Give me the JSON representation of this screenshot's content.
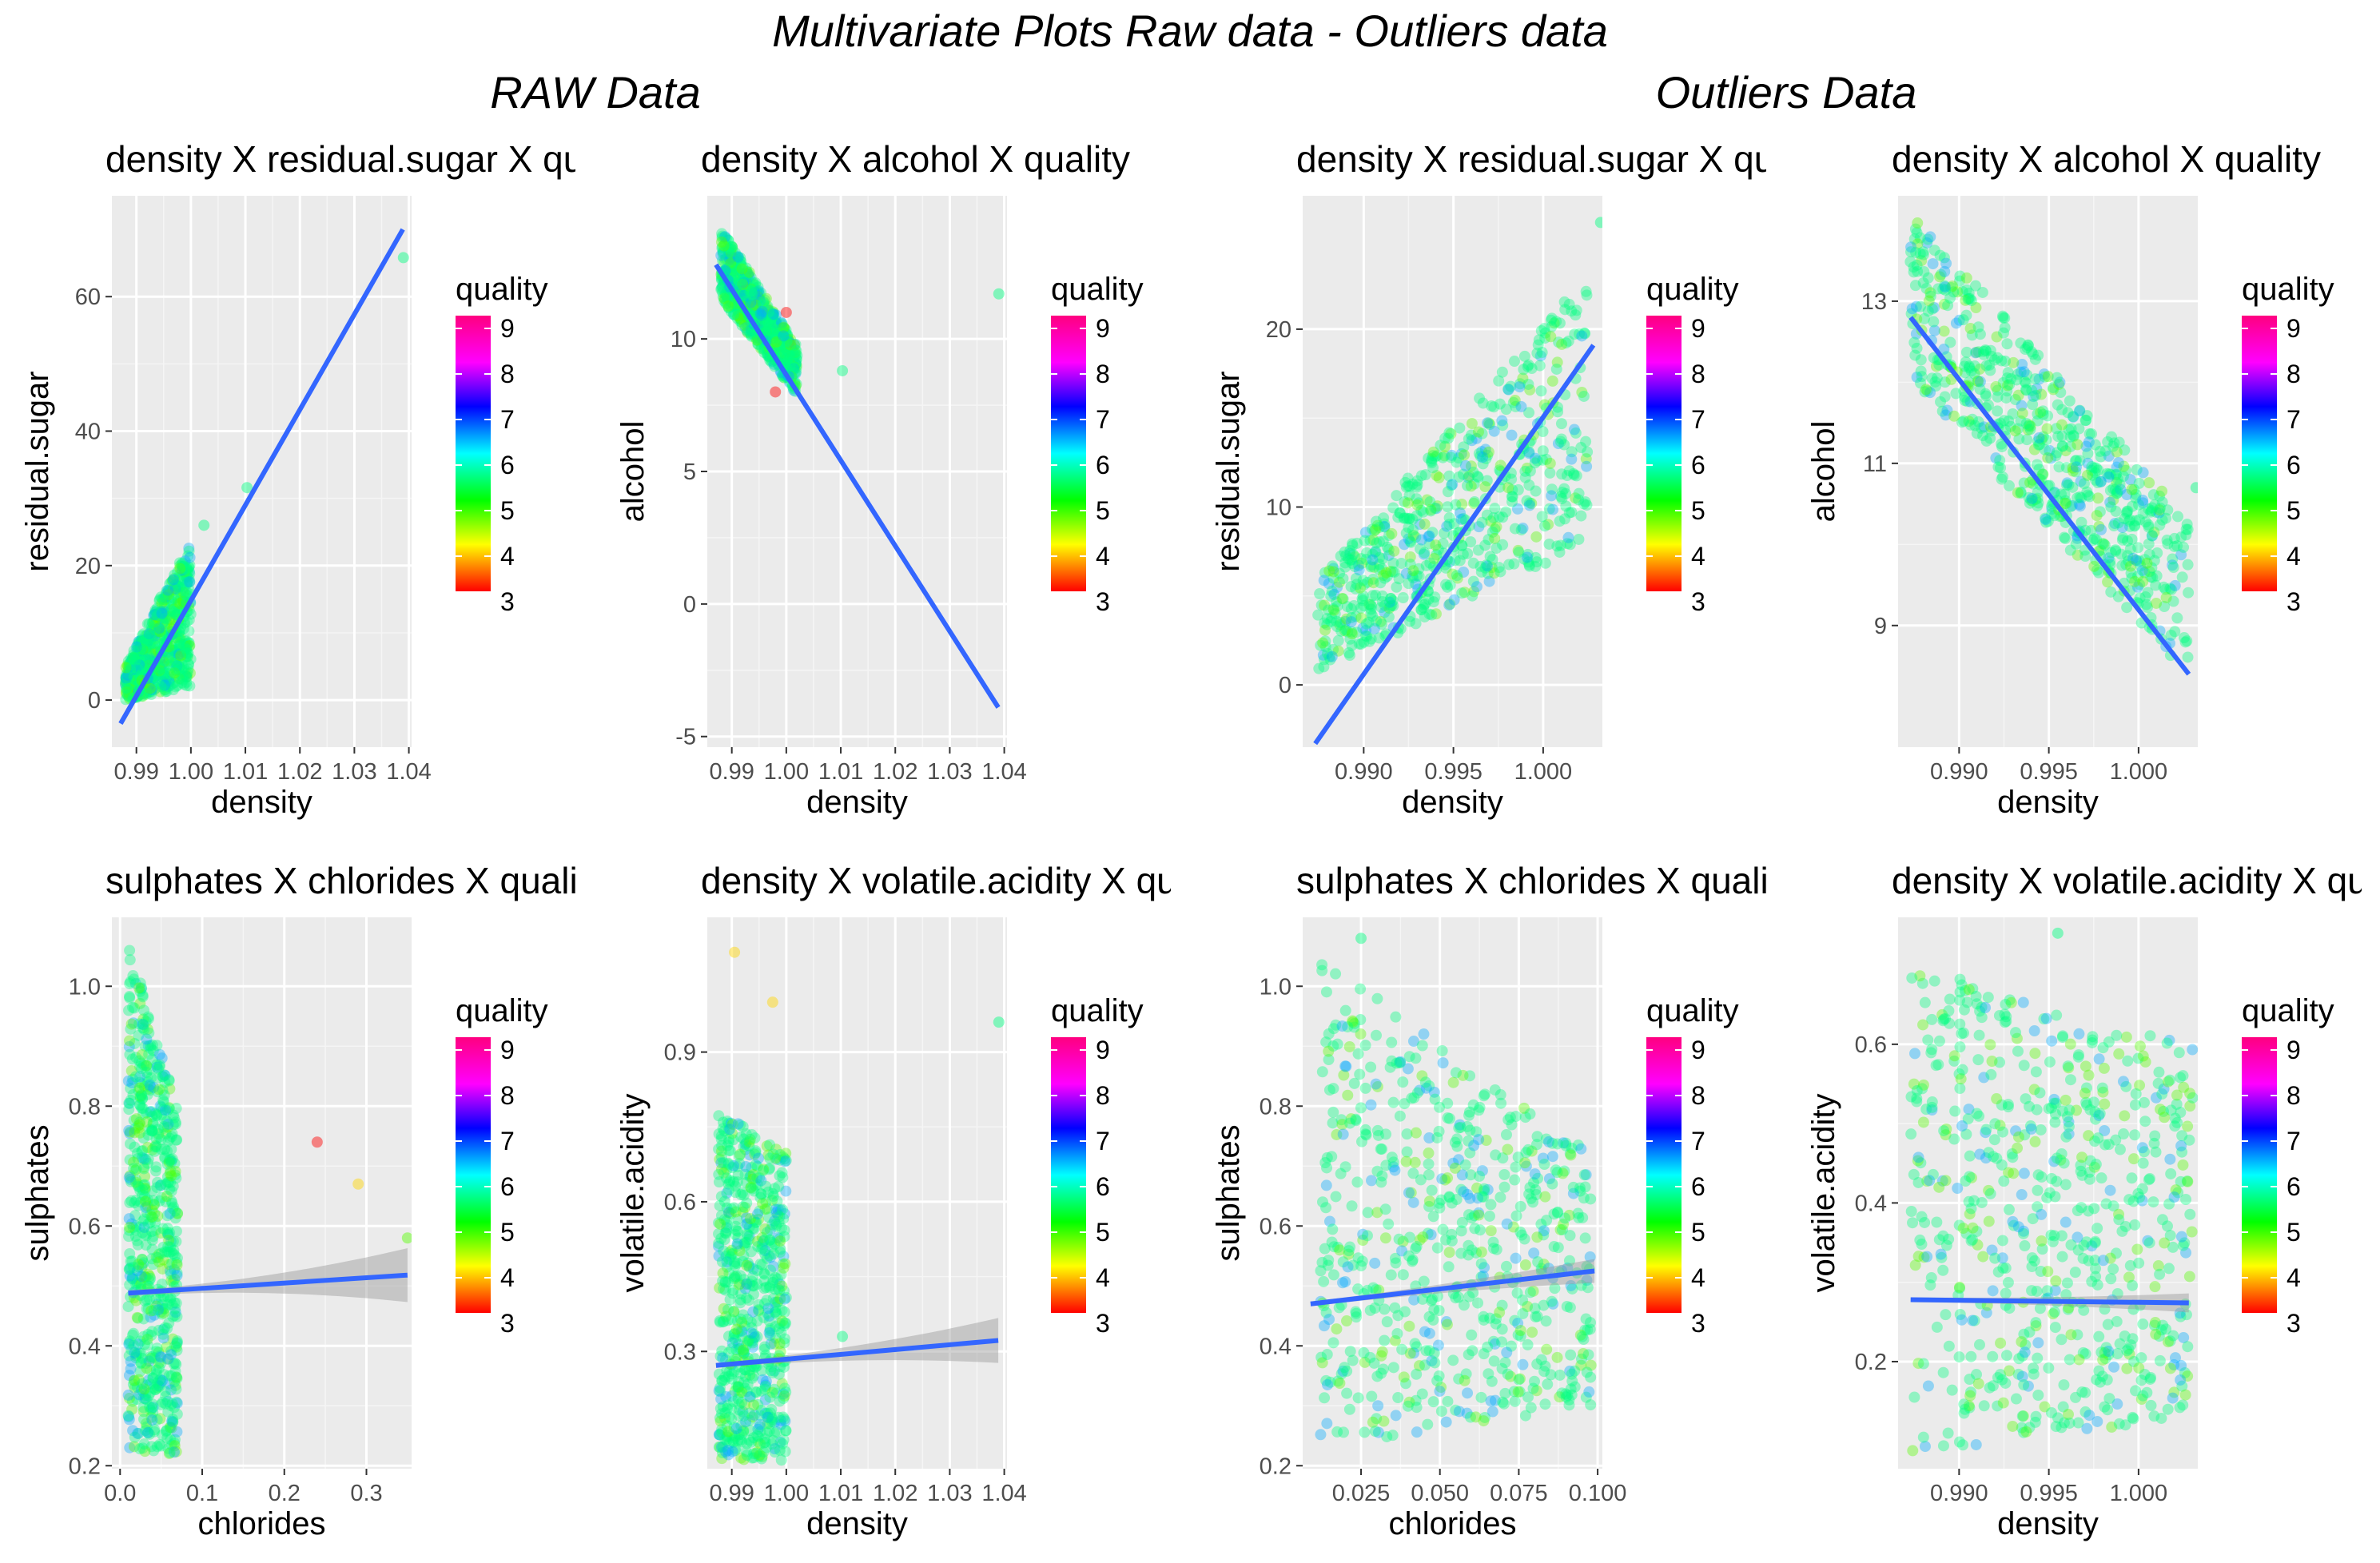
{
  "title": "Multivariate Plots Raw data - Outliers data",
  "group_titles": [
    "RAW Data",
    "Outliers Data"
  ],
  "legend": {
    "title": "quality",
    "labels": [
      "9",
      "8",
      "7",
      "6",
      "5",
      "4",
      "3"
    ]
  },
  "chart_data": [
    {
      "type": "scatter",
      "title": "density X residual.sugar X quality",
      "xlabel": "density",
      "ylabel": "residual.sugar",
      "xlim": [
        0.9855,
        1.0405
      ],
      "ylim": [
        -7,
        75
      ],
      "xticks": [
        0.99,
        1.0,
        1.01,
        1.02,
        1.03,
        1.04
      ],
      "xtick_labels": [
        "0.99",
        "1.00",
        "1.01",
        "1.02",
        "1.03",
        "1.04"
      ],
      "yticks": [
        0,
        20,
        40,
        60
      ],
      "ytick_labels": [
        "0",
        "20",
        "40",
        "60"
      ],
      "cluster": {
        "x": [
          0.988,
          1.0
        ],
        "y_low": [
          0,
          2
        ],
        "y_high": [
          5,
          24
        ]
      },
      "outlier_points": [
        {
          "x": 1.039,
          "y": 65.8,
          "q": 6
        },
        {
          "x": 1.0103,
          "y": 31.6,
          "q": 6
        },
        {
          "x": 1.0024,
          "y": 26,
          "q": 6
        }
      ],
      "fit": {
        "x": [
          0.9871,
          1.0389
        ],
        "y": [
          -3.5,
          70
        ]
      }
    },
    {
      "type": "scatter",
      "title": "density X alcohol X quality",
      "xlabel": "density",
      "ylabel": "alcohol",
      "xlim": [
        0.9855,
        1.0405
      ],
      "ylim": [
        -5.4,
        15.4
      ],
      "xticks": [
        0.99,
        1.0,
        1.01,
        1.02,
        1.03,
        1.04
      ],
      "xtick_labels": [
        "0.99",
        "1.00",
        "1.01",
        "1.02",
        "1.03",
        "1.04"
      ],
      "yticks": [
        -5,
        0,
        5,
        10
      ],
      "ytick_labels": [
        "-5",
        "0",
        "5",
        "10"
      ],
      "cluster": {
        "x": [
          0.988,
          1.002
        ],
        "y_low": [
          11.5,
          7.9
        ],
        "y_high": [
          14.2,
          9.7
        ]
      },
      "outlier_points": [
        {
          "x": 1.039,
          "y": 11.7,
          "q": 6
        },
        {
          "x": 1.0103,
          "y": 8.8,
          "q": 6
        },
        {
          "x": 0.998,
          "y": 8,
          "q": 3
        },
        {
          "x": 1.0,
          "y": 11,
          "q": 3
        }
      ],
      "fit": {
        "x": [
          0.9871,
          1.0389
        ],
        "y": [
          12.8,
          -3.9
        ]
      }
    },
    {
      "type": "scatter",
      "title": "density X residual.sugar X quality",
      "xlabel": "density",
      "ylabel": "residual.sugar",
      "xlim": [
        0.9866,
        1.0033
      ],
      "ylim": [
        -3.5,
        27.5
      ],
      "xticks": [
        0.99,
        0.995,
        1.0
      ],
      "xtick_labels": [
        "0.990",
        "0.995",
        "1.000"
      ],
      "yticks": [
        0,
        10,
        20
      ],
      "ytick_labels": [
        "0",
        "10",
        "20"
      ],
      "cluster": {
        "x": [
          0.9875,
          1.0025
        ],
        "y_low": [
          0.8,
          8
        ],
        "y_high": [
          6,
          23
        ]
      },
      "outlier_points": [
        {
          "x": 1.0032,
          "y": 26,
          "q": 6
        }
      ],
      "fit": {
        "x": [
          0.9873,
          1.0028
        ],
        "y": [
          -3.3,
          19.1
        ]
      }
    },
    {
      "type": "scatter",
      "title": "density X alcohol X quality",
      "xlabel": "density",
      "ylabel": "alcohol",
      "xlim": [
        0.9866,
        1.0033
      ],
      "ylim": [
        7.5,
        14.3
      ],
      "xticks": [
        0.99,
        0.995,
        1.0
      ],
      "xtick_labels": [
        "0.990",
        "0.995",
        "1.000"
      ],
      "yticks": [
        9,
        11,
        13
      ],
      "ytick_labels": [
        "9",
        "11",
        "13"
      ],
      "cluster": {
        "x": [
          0.9873,
          1.0028
        ],
        "y_low": [
          12,
          8.4
        ],
        "y_high": [
          14.1,
          10.3
        ]
      },
      "outlier_points": [
        {
          "x": 1.0032,
          "y": 10.7,
          "q": 6
        }
      ],
      "fit": {
        "x": [
          0.9873,
          1.0028
        ],
        "y": [
          12.8,
          8.4
        ]
      }
    },
    {
      "type": "scatter",
      "title": "sulphates X chlorides X quality",
      "xlabel": "chlorides",
      "ylabel": "sulphates",
      "xlim": [
        -0.01,
        0.355
      ],
      "ylim": [
        0.195,
        1.115
      ],
      "xticks": [
        0.0,
        0.1,
        0.2,
        0.3
      ],
      "xtick_labels": [
        "0.0",
        "0.1",
        "0.2",
        "0.3"
      ],
      "yticks": [
        0.2,
        0.4,
        0.6,
        0.8,
        1.0
      ],
      "ytick_labels": [
        "0.2",
        "0.4",
        "0.6",
        "0.8",
        "1.0"
      ],
      "cluster": {
        "x": [
          0.01,
          0.07
        ],
        "y_low": [
          0.22,
          0.22
        ],
        "y_high": [
          1.08,
          0.8
        ]
      },
      "outlier_points": [
        {
          "x": 0.24,
          "y": 0.74,
          "q": 3
        },
        {
          "x": 0.29,
          "y": 0.67,
          "q": 4
        },
        {
          "x": 0.35,
          "y": 0.58,
          "q": 5
        }
      ],
      "fit": {
        "x": [
          0.01,
          0.35
        ],
        "y": [
          0.488,
          0.518
        ]
      },
      "band": [
        0.005,
        0.045
      ]
    },
    {
      "type": "scatter",
      "title": "density X volatile.acidity X quality",
      "xlabel": "density",
      "ylabel": "volatile.acidity",
      "xlim": [
        0.9855,
        1.0405
      ],
      "ylim": [
        0.065,
        1.17
      ],
      "xticks": [
        0.99,
        1.0,
        1.01,
        1.02,
        1.03,
        1.04
      ],
      "xtick_labels": [
        "0.99",
        "1.00",
        "1.01",
        "1.02",
        "1.03",
        "1.04"
      ],
      "yticks": [
        0.3,
        0.6,
        0.9
      ],
      "ytick_labels": [
        "0.3",
        "0.6",
        "0.9"
      ],
      "cluster": {
        "x": [
          0.9875,
          1.0
        ],
        "y_low": [
          0.08,
          0.08
        ],
        "y_high": [
          0.78,
          0.7
        ]
      },
      "outlier_points": [
        {
          "x": 1.039,
          "y": 0.96,
          "q": 6
        },
        {
          "x": 1.0103,
          "y": 0.33,
          "q": 6
        },
        {
          "x": 0.9905,
          "y": 1.1,
          "q": 4
        },
        {
          "x": 0.9975,
          "y": 1.0,
          "q": 4
        }
      ],
      "fit": {
        "x": [
          0.9871,
          1.0389
        ],
        "y": [
          0.272,
          0.322
        ]
      },
      "band": [
        0.005,
        0.045
      ]
    },
    {
      "type": "scatter",
      "title": "sulphates X chlorides X quality",
      "xlabel": "chlorides",
      "ylabel": "sulphates",
      "xlim": [
        0.0065,
        0.1015
      ],
      "ylim": [
        0.195,
        1.115
      ],
      "xticks": [
        0.025,
        0.05,
        0.075,
        0.1
      ],
      "xtick_labels": [
        "0.025",
        "0.050",
        "0.075",
        "0.100"
      ],
      "yticks": [
        0.2,
        0.4,
        0.6,
        0.8,
        1.0
      ],
      "ytick_labels": [
        "0.2",
        "0.4",
        "0.6",
        "0.8",
        "1.0"
      ],
      "cluster": {
        "x": [
          0.012,
          0.098
        ],
        "y_low": [
          0.23,
          0.3
        ],
        "y_high": [
          1.05,
          0.72
        ]
      },
      "outlier_points": [
        {
          "x": 0.025,
          "y": 1.08,
          "q": 6
        }
      ],
      "fit": {
        "x": [
          0.009,
          0.099
        ],
        "y": [
          0.47,
          0.525
        ]
      },
      "band": [
        0.004,
        0.02
      ]
    },
    {
      "type": "scatter",
      "title": "density X volatile.acidity X quality",
      "xlabel": "density",
      "ylabel": "volatile.acidity",
      "xlim": [
        0.9866,
        1.0033
      ],
      "ylim": [
        0.065,
        0.76
      ],
      "xticks": [
        0.99,
        0.995,
        1.0
      ],
      "xtick_labels": [
        "0.990",
        "0.995",
        "1.000"
      ],
      "yticks": [
        0.2,
        0.4,
        0.6
      ],
      "ytick_labels": [
        "0.2",
        "0.4",
        "0.6"
      ],
      "cluster": {
        "x": [
          0.9873,
          1.003
        ],
        "y_low": [
          0.08,
          0.13
        ],
        "y_high": [
          0.7,
          0.6
        ]
      },
      "outlier_points": [
        {
          "x": 0.9955,
          "y": 0.74,
          "q": 6
        }
      ],
      "fit": {
        "x": [
          0.9873,
          1.0028
        ],
        "y": [
          0.278,
          0.274
        ]
      },
      "band": [
        0.003,
        0.012
      ]
    }
  ]
}
